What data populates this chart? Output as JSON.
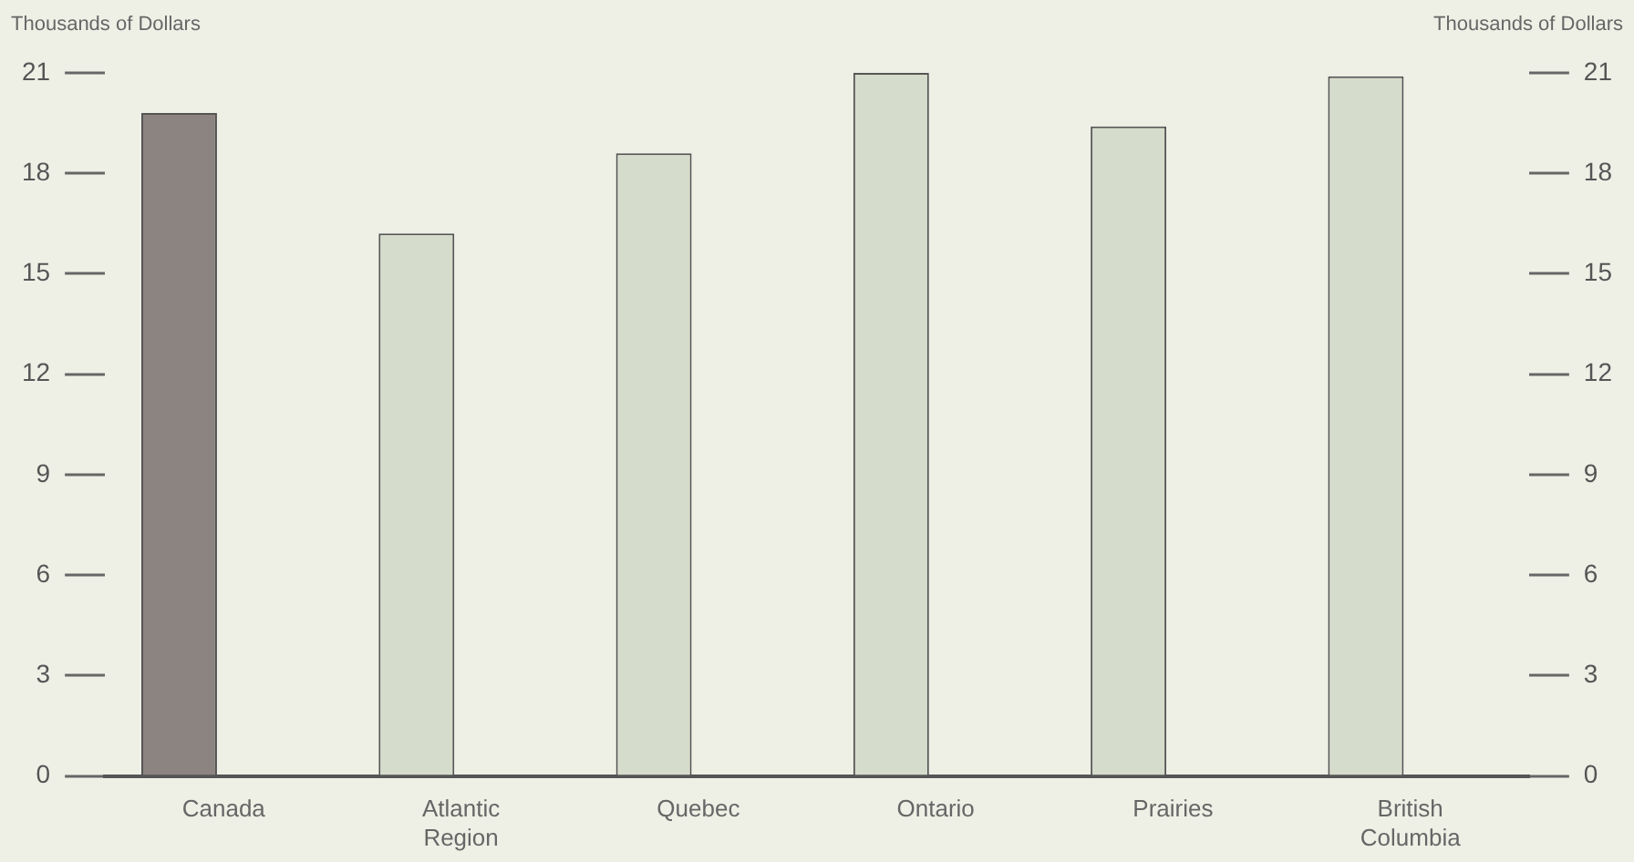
{
  "chart_data": {
    "type": "bar",
    "ylabel": "Thousands of Dollars",
    "y2label": "Thousands of Dollars",
    "categories": [
      "Canada",
      "Atlantic Region",
      "Quebec",
      "Ontario",
      "Prairies",
      "British Columbia"
    ],
    "values": [
      19.8,
      16.2,
      18.6,
      21.0,
      19.4,
      20.9
    ],
    "colors": [
      "#8c8480",
      "#d6dccb",
      "#d6dccb",
      "#d6dccb",
      "#d6dccb",
      "#d6dccb"
    ],
    "ylim": [
      0,
      21
    ],
    "yticks": [
      0,
      3,
      6,
      9,
      12,
      15,
      18,
      21
    ],
    "y2lim": [
      0,
      21
    ],
    "y2ticks": [
      0,
      3,
      6,
      9,
      12,
      15,
      18,
      21
    ],
    "grid": false,
    "legend": false
  }
}
